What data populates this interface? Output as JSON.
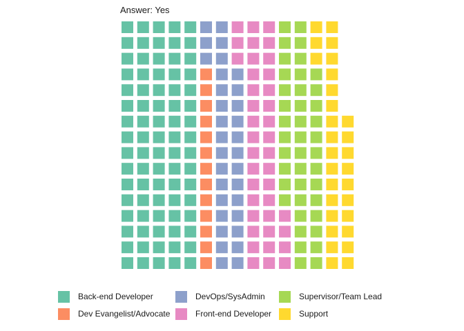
{
  "chart_data": {
    "type": "waffle",
    "title": "Answer: Yes",
    "rows": 16,
    "fill_order": "column-wise, bottom to top",
    "categories": [
      {
        "name": "Back-end Developer",
        "count": 80,
        "color": "#66C2A5"
      },
      {
        "name": "Dev Evangelist/Advocate",
        "count": 13,
        "color": "#FC8D62"
      },
      {
        "name": "DevOps/SysAdmin",
        "count": 32,
        "color": "#8DA0CB"
      },
      {
        "name": "Front-end Developer",
        "count": 39,
        "color": "#E78AC3"
      },
      {
        "name": "Supervisor/Team Lead",
        "count": 41,
        "color": "#A6D854"
      },
      {
        "name": "Support",
        "count": 29,
        "color": "#FFD92F"
      }
    ]
  },
  "legend": {
    "items": [
      {
        "label": "Back-end Developer",
        "color": "#66C2A5"
      },
      {
        "label": "Dev Evangelist/Advocate",
        "color": "#FC8D62"
      },
      {
        "label": "DevOps/SysAdmin",
        "color": "#8DA0CB"
      },
      {
        "label": "Front-end Developer",
        "color": "#E78AC3"
      },
      {
        "label": "Supervisor/Team Lead",
        "color": "#A6D854"
      },
      {
        "label": "Support",
        "color": "#FFD92F"
      }
    ]
  }
}
